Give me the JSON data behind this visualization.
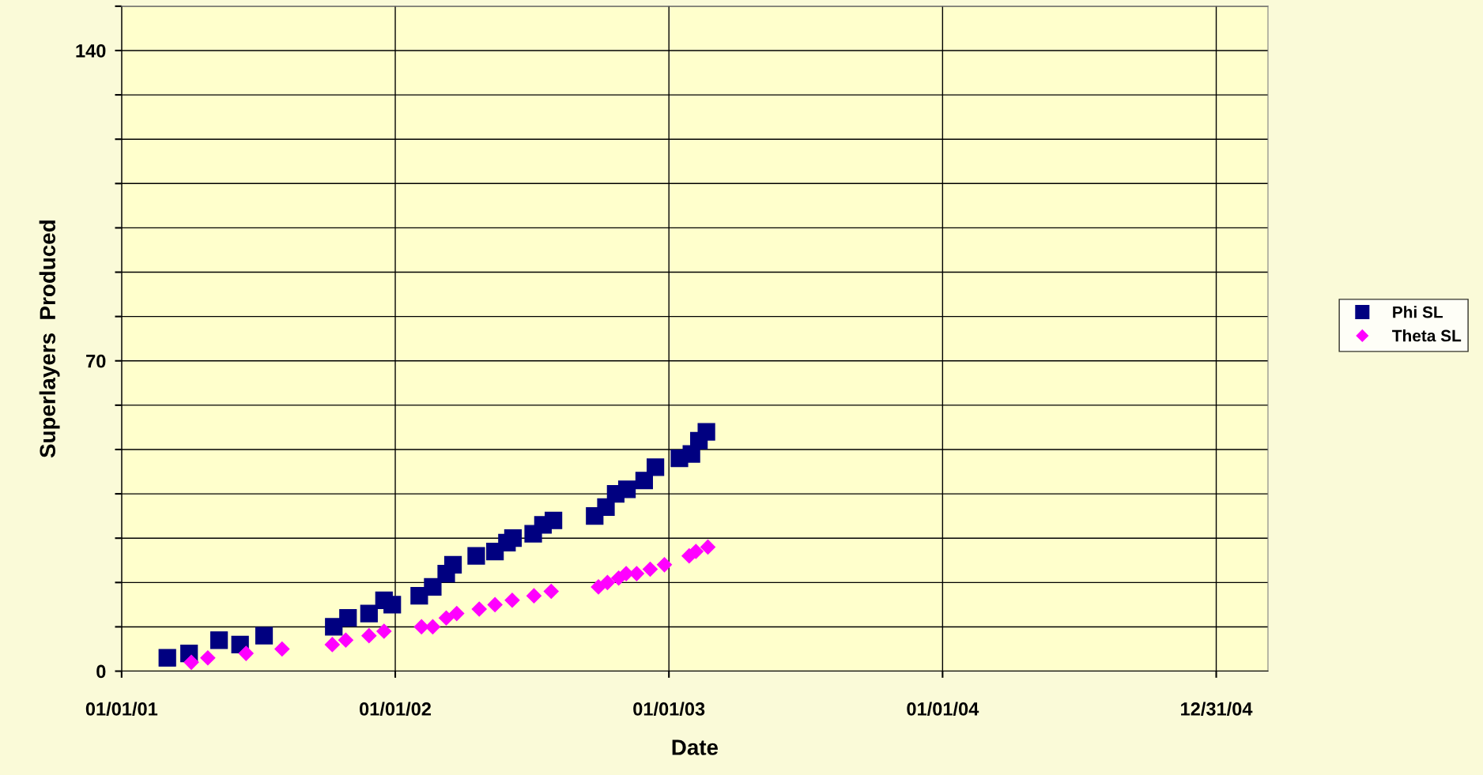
{
  "chart_data": {
    "type": "scatter",
    "xlabel": "Date",
    "ylabel": "Superlayers  Produced",
    "xlim": [
      "2001-01-01",
      "2005-03-10"
    ],
    "xticks": [
      {
        "value": "2001-01-01",
        "label": "01/01/01"
      },
      {
        "value": "2002-01-01",
        "label": "01/01/02"
      },
      {
        "value": "2003-01-01",
        "label": "01/01/03"
      },
      {
        "value": "2004-01-01",
        "label": "01/01/04"
      },
      {
        "value": "2004-12-31",
        "label": "12/31/04"
      }
    ],
    "ylim": [
      0,
      150
    ],
    "yticks": [
      0,
      {
        "value": 10,
        "label": null
      },
      {
        "value": 20,
        "label": null
      },
      {
        "value": 30,
        "label": null
      },
      {
        "value": 40,
        "label": null
      },
      {
        "value": 50,
        "label": null
      },
      {
        "value": 60,
        "label": null
      },
      70,
      {
        "value": 80,
        "label": null
      },
      {
        "value": 90,
        "label": null
      },
      {
        "value": 100,
        "label": null
      },
      {
        "value": 110,
        "label": null
      },
      {
        "value": 120,
        "label": null
      },
      {
        "value": 130,
        "label": null
      },
      140,
      {
        "value": 150,
        "label": null
      }
    ],
    "grid": true,
    "legend": "right",
    "series": [
      {
        "name": "Phi SL",
        "color": "#000080",
        "marker": "square",
        "x": [
          "2001-03-03",
          "2001-04-01",
          "2001-05-11",
          "2001-06-08",
          "2001-07-10",
          "2001-10-11",
          "2001-10-30",
          "2001-11-27",
          "2001-12-17",
          "2001-12-28",
          "2002-02-02",
          "2002-02-20",
          "2002-03-10",
          "2002-03-19",
          "2002-04-19",
          "2002-05-14",
          "2002-05-30",
          "2002-06-07",
          "2002-07-04",
          "2002-07-17",
          "2002-07-31",
          "2002-09-24",
          "2002-10-09",
          "2002-10-22",
          "2002-11-06",
          "2002-11-29",
          "2002-12-14",
          "2003-01-15",
          "2003-01-31",
          "2003-02-10",
          "2003-02-20"
        ],
        "values": [
          3,
          4,
          7,
          6,
          8,
          10,
          12,
          13,
          16,
          15,
          17,
          19,
          22,
          24,
          26,
          27,
          29,
          30,
          31,
          33,
          34,
          35,
          37,
          40,
          41,
          43,
          46,
          48,
          49,
          52,
          54
        ]
      },
      {
        "name": "Theta SL",
        "color": "#ff00ff",
        "marker": "diamond",
        "x": [
          "2001-04-04",
          "2001-04-26",
          "2001-06-16",
          "2001-08-03",
          "2001-10-09",
          "2001-10-27",
          "2001-11-27",
          "2001-12-17",
          "2002-02-05",
          "2002-02-20",
          "2002-03-10",
          "2002-03-24",
          "2002-04-23",
          "2002-05-14",
          "2002-06-06",
          "2002-07-05",
          "2002-07-28",
          "2002-09-29",
          "2002-10-11",
          "2002-10-26",
          "2002-11-05",
          "2002-11-19",
          "2002-12-07",
          "2002-12-26",
          "2003-01-28",
          "2003-02-06",
          "2003-02-22"
        ],
        "values": [
          2,
          3,
          4,
          5,
          6,
          7,
          8,
          9,
          10,
          10,
          12,
          13,
          14,
          15,
          16,
          17,
          18,
          19,
          20,
          21,
          22,
          22,
          23,
          24,
          26,
          27,
          28
        ]
      }
    ]
  }
}
